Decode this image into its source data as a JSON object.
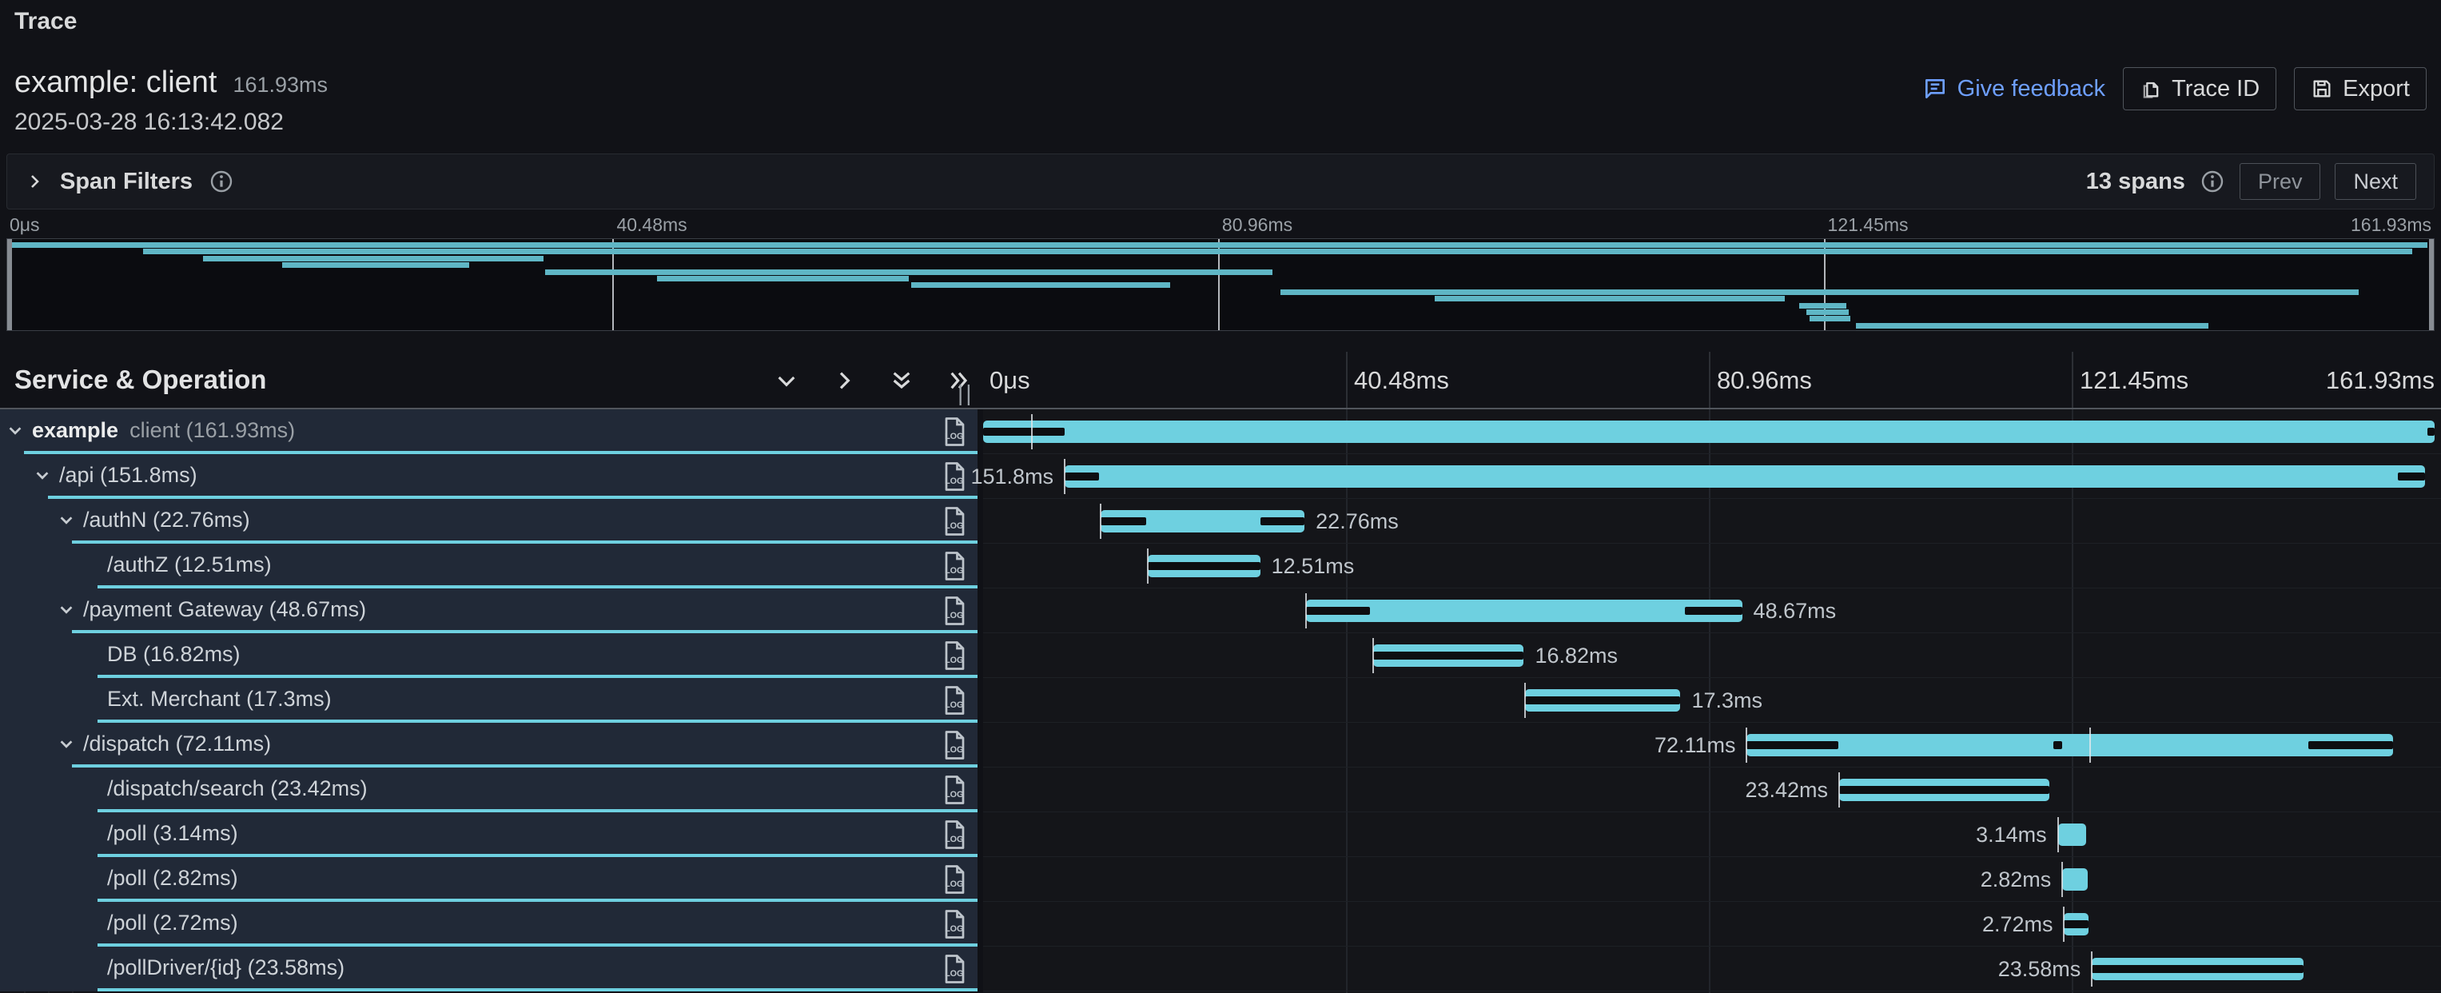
{
  "app": {
    "eyebrow": "Trace",
    "title": "example: client",
    "duration": "161.93ms",
    "timestamp": "2025-03-28 16:13:42.082",
    "actions": {
      "feedback": "Give feedback",
      "trace_id": "Trace ID",
      "export": "Export"
    },
    "colors": {
      "accent": "#6ed0e0",
      "link": "#6e9fff",
      "background": "#111217",
      "critical_path": "#0d0e11"
    }
  },
  "filters": {
    "label": "Span Filters",
    "span_count": "13 spans",
    "prev": "Prev",
    "next": "Next"
  },
  "waterfall": {
    "header_label": "Service & Operation",
    "total_ms": 161.93,
    "ticks": [
      {
        "label": "0μs",
        "ms": 0
      },
      {
        "label": "40.48ms",
        "ms": 40.48
      },
      {
        "label": "80.96ms",
        "ms": 80.96
      },
      {
        "label": "121.45ms",
        "ms": 121.45
      },
      {
        "label": "161.93ms",
        "ms": 161.93
      }
    ],
    "spans": [
      {
        "service": "example",
        "label": "client (161.93ms)",
        "level": 0,
        "expandable": true,
        "start_ms": 0,
        "duration_ms": 161.93,
        "duration_label": "",
        "label_side": "none",
        "critical": [
          [
            0,
            9.1
          ],
          [
            161.1,
            161.93
          ]
        ],
        "event_ticks": [
          5.4
        ]
      },
      {
        "service": "",
        "label": "/api (151.8ms)",
        "level": 1,
        "expandable": true,
        "start_ms": 9.1,
        "duration_ms": 151.8,
        "duration_label": "151.8ms",
        "label_side": "left",
        "critical": [
          [
            9.1,
            12.9
          ],
          [
            157.8,
            160.9
          ]
        ],
        "event_ticks": [
          9.1
        ]
      },
      {
        "service": "",
        "label": "/authN (22.76ms)",
        "level": 2,
        "expandable": true,
        "start_ms": 13.1,
        "duration_ms": 22.76,
        "duration_label": "22.76ms",
        "label_side": "right",
        "critical": [
          [
            13.1,
            18.2
          ],
          [
            30.9,
            35.86
          ]
        ],
        "event_ticks": [
          13.1
        ]
      },
      {
        "service": "",
        "label": "/authZ (12.51ms)",
        "level": 3,
        "expandable": false,
        "start_ms": 18.4,
        "duration_ms": 12.51,
        "duration_label": "12.51ms",
        "label_side": "right",
        "critical": [
          [
            18.4,
            30.91
          ]
        ],
        "event_ticks": [
          18.4
        ]
      },
      {
        "service": "",
        "label": "/payment Gateway (48.67ms)",
        "level": 2,
        "expandable": true,
        "start_ms": 36.0,
        "duration_ms": 48.67,
        "duration_label": "48.67ms",
        "label_side": "right",
        "critical": [
          [
            36.0,
            43.2
          ],
          [
            78.3,
            84.67
          ]
        ],
        "event_ticks": [
          36.0
        ]
      },
      {
        "service": "",
        "label": "DB (16.82ms)",
        "level": 3,
        "expandable": false,
        "start_ms": 43.5,
        "duration_ms": 16.82,
        "duration_label": "16.82ms",
        "label_side": "right",
        "critical": [
          [
            43.5,
            60.32
          ]
        ],
        "event_ticks": [
          43.5
        ]
      },
      {
        "service": "",
        "label": "Ext. Merchant (17.3ms)",
        "level": 3,
        "expandable": false,
        "start_ms": 60.5,
        "duration_ms": 17.3,
        "duration_label": "17.3ms",
        "label_side": "right",
        "critical": [
          [
            60.5,
            77.8
          ]
        ],
        "event_ticks": [
          60.5
        ]
      },
      {
        "service": "",
        "label": "/dispatch (72.11ms)",
        "level": 2,
        "expandable": true,
        "start_ms": 85.2,
        "duration_ms": 72.11,
        "duration_label": "72.11ms",
        "label_side": "left",
        "critical": [
          [
            85.2,
            95.4
          ],
          [
            119.4,
            120.4
          ],
          [
            147.8,
            157.31
          ]
        ],
        "event_ticks": [
          85.2,
          123.5
        ]
      },
      {
        "service": "",
        "label": "/dispatch/search (23.42ms)",
        "level": 3,
        "expandable": false,
        "start_ms": 95.5,
        "duration_ms": 23.42,
        "duration_label": "23.42ms",
        "label_side": "left",
        "critical": [
          [
            95.5,
            118.92
          ]
        ],
        "event_ticks": [
          95.5
        ]
      },
      {
        "service": "",
        "label": "/poll (3.14ms)",
        "level": 3,
        "expandable": false,
        "start_ms": 119.9,
        "duration_ms": 3.14,
        "duration_label": "3.14ms",
        "label_side": "left",
        "critical": [],
        "event_ticks": [
          119.9
        ]
      },
      {
        "service": "",
        "label": "/poll (2.82ms)",
        "level": 3,
        "expandable": false,
        "start_ms": 120.4,
        "duration_ms": 2.82,
        "duration_label": "2.82ms",
        "label_side": "left",
        "critical": [],
        "event_ticks": [
          120.4
        ]
      },
      {
        "service": "",
        "label": "/poll (2.72ms)",
        "level": 3,
        "expandable": false,
        "start_ms": 120.6,
        "duration_ms": 2.72,
        "duration_label": "2.72ms",
        "label_side": "left",
        "critical": [
          [
            120.6,
            123.32
          ]
        ],
        "event_ticks": [
          120.6
        ]
      },
      {
        "service": "",
        "label": "/pollDriver/{id} (23.58ms)",
        "level": 3,
        "expandable": false,
        "start_ms": 123.7,
        "duration_ms": 23.58,
        "duration_label": "23.58ms",
        "label_side": "left",
        "critical": [
          [
            123.7,
            147.28
          ]
        ],
        "event_ticks": [
          123.7
        ]
      }
    ]
  }
}
